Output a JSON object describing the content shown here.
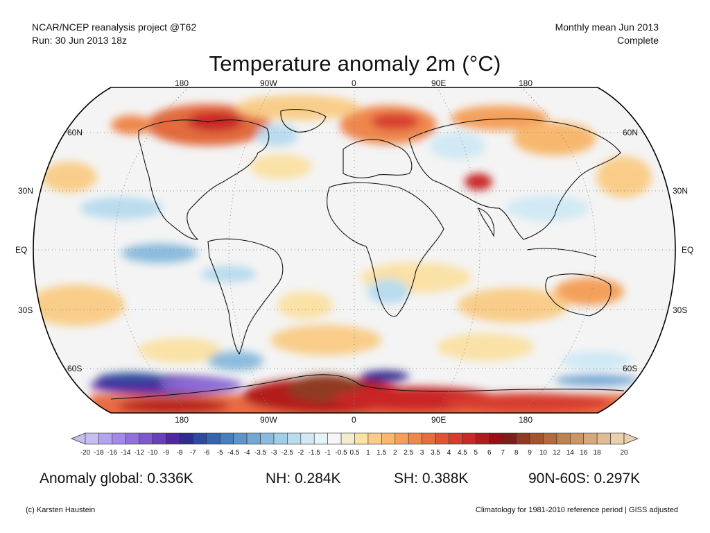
{
  "header": {
    "left_line1": "NCAR/NCEP reanalysis project @T62",
    "left_line2": "Run: 30 Jun 2013 18z",
    "right_line1": "Monthly mean Jun 2013",
    "right_line2": "Complete"
  },
  "title": "Temperature anomaly 2m (°C)",
  "axes": {
    "lon_labels": [
      "180",
      "90W",
      "0",
      "90E",
      "180"
    ],
    "lat_labels": [
      "60N",
      "30N",
      "EQ",
      "30S",
      "60S"
    ]
  },
  "colorbar": {
    "labels": [
      "-20",
      "-18",
      "-16",
      "-14",
      "-12",
      "-10",
      "-9",
      "-8",
      "-7",
      "-6",
      "-5",
      "-4.5",
      "-4",
      "-3.5",
      "-3",
      "-2.5",
      "-2",
      "-1.5",
      "-1",
      "-0.5",
      "0.5",
      "1",
      "1.5",
      "2",
      "2.5",
      "3",
      "3.5",
      "4",
      "4.5",
      "5",
      "6",
      "7",
      "8",
      "9",
      "10",
      "12",
      "14",
      "16",
      "18",
      "20"
    ],
    "colors": [
      "#c7bdf2",
      "#b6a3ee",
      "#a48ae6",
      "#9271dc",
      "#7f58cf",
      "#6b3fbf",
      "#5127a3",
      "#2f2b8f",
      "#2d4b9c",
      "#3466ac",
      "#4a7fbd",
      "#5f94c9",
      "#74a8d3",
      "#8bbbdd",
      "#a2cde6",
      "#b9dcee",
      "#d0e9f4",
      "#e6f3f8",
      "#f6f6f6",
      "#f5ecd0",
      "#fae1a6",
      "#f9cd89",
      "#f7b86e",
      "#f4a05b",
      "#ef874d",
      "#e86c42",
      "#e05338",
      "#d63c2f",
      "#c92828",
      "#b31a1e",
      "#9a0f17",
      "#7d1f18",
      "#8f3b23",
      "#a0552e",
      "#b06c3e",
      "#be8151",
      "#cb9566",
      "#d6a97c",
      "#e1bb93",
      "#ecd0ae"
    ]
  },
  "stats": {
    "global": "Anomaly global: 0.336K",
    "nh": "NH: 0.284K",
    "sh": "SH: 0.388K",
    "polar": "90N-60S: 0.297K"
  },
  "footer": {
    "left": "(c) Karsten Haustein",
    "right": "Climatology for 1981-2010 reference period | GISS adjusted"
  }
}
